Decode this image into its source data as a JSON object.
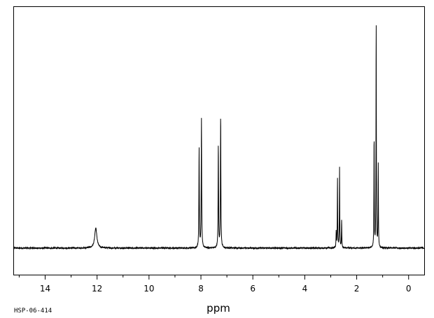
{
  "sample_id": "HSP-06-414",
  "chart_data": {
    "type": "line",
    "title": "",
    "xlabel": "ppm",
    "ylabel": "",
    "xlim": [
      15.2,
      -0.6
    ],
    "x_reversed": true,
    "grid": false,
    "legend": "none",
    "line_color": "#000000",
    "x_ticks": [
      {
        "value": 14,
        "label": "14"
      },
      {
        "value": 12,
        "label": "12"
      },
      {
        "value": 10,
        "label": "10"
      },
      {
        "value": 8,
        "label": "8"
      },
      {
        "value": 6,
        "label": "6"
      },
      {
        "value": 4,
        "label": "4"
      },
      {
        "value": 2,
        "label": "2"
      },
      {
        "value": 0,
        "label": "0"
      }
    ],
    "minor_tick_step": 1,
    "baseline_intensity": 0,
    "ylim": [
      -0.16,
      1.45
    ],
    "peaks": [
      {
        "ppm": 12.05,
        "intensity": 0.12,
        "width": 0.05
      },
      {
        "ppm": 8.07,
        "intensity": 0.6,
        "width": 0.01
      },
      {
        "ppm": 7.98,
        "intensity": 0.78,
        "width": 0.01
      },
      {
        "ppm": 7.33,
        "intensity": 0.62,
        "width": 0.01
      },
      {
        "ppm": 7.24,
        "intensity": 0.8,
        "width": 0.01
      },
      {
        "ppm": 2.79,
        "intensity": 0.1,
        "width": 0.008
      },
      {
        "ppm": 2.74,
        "intensity": 0.42,
        "width": 0.008
      },
      {
        "ppm": 2.66,
        "intensity": 0.48,
        "width": 0.008
      },
      {
        "ppm": 2.58,
        "intensity": 0.17,
        "width": 0.008
      },
      {
        "ppm": 1.33,
        "intensity": 0.68,
        "width": 0.008
      },
      {
        "ppm": 1.25,
        "intensity": 1.37,
        "width": 0.008
      },
      {
        "ppm": 1.17,
        "intensity": 0.5,
        "width": 0.008
      }
    ]
  }
}
